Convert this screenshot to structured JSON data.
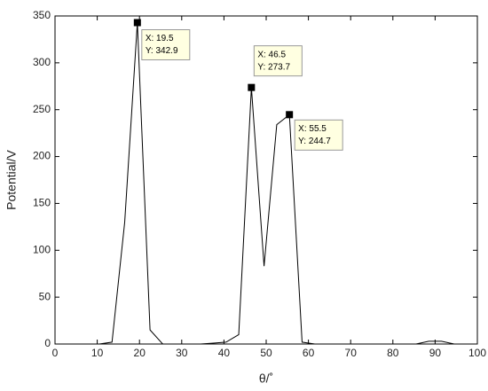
{
  "chart_data": {
    "type": "line",
    "xlabel": "θ/˚",
    "ylabel": "Potential/V",
    "x": [
      4.5,
      7.5,
      10.5,
      13.5,
      16.5,
      19.5,
      22.5,
      25.5,
      28.5,
      31.5,
      34.5,
      37.5,
      40.5,
      43.5,
      46.5,
      49.5,
      52.5,
      55.5,
      58.5,
      61.5,
      75,
      85.5,
      88.5,
      91.5,
      94.5
    ],
    "series": [
      {
        "color": "#000000",
        "values": [
          0,
          0,
          0,
          2,
          130,
          342.9,
          15,
          0,
          0,
          0,
          0,
          1,
          2,
          10,
          273.7,
          83,
          234,
          244.7,
          2,
          0,
          null,
          0,
          3,
          3,
          0
        ]
      }
    ],
    "xlim": [
      0,
      100
    ],
    "ylim": [
      0,
      350
    ],
    "xticks": [
      0,
      10,
      20,
      30,
      40,
      50,
      60,
      70,
      80,
      90,
      100
    ],
    "yticks": [
      0,
      50,
      100,
      150,
      200,
      250,
      300,
      350
    ],
    "grid": false,
    "annotations": [
      {
        "x": 19.5,
        "y": 342.9,
        "x_label": "X: 19.5",
        "y_label": "Y: 342.9"
      },
      {
        "x": 46.5,
        "y": 273.7,
        "x_label": "X: 46.5",
        "y_label": "Y: 273.7"
      },
      {
        "x": 55.5,
        "y": 244.7,
        "x_label": "X: 55.5",
        "y_label": "Y: 244.7"
      }
    ]
  }
}
